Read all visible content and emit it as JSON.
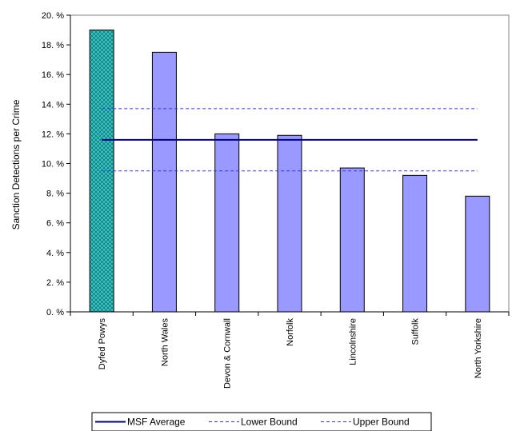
{
  "chart_data": {
    "type": "bar",
    "ylabel": "Sanction Detections per Crime",
    "ylim": [
      0,
      20
    ],
    "y_ticks": [
      {
        "value": 0,
        "label": "0. %"
      },
      {
        "value": 2,
        "label": "2. %"
      },
      {
        "value": 4,
        "label": "4. %"
      },
      {
        "value": 6,
        "label": "6. %"
      },
      {
        "value": 8,
        "label": "8. %"
      },
      {
        "value": 10,
        "label": "10. %"
      },
      {
        "value": 12,
        "label": "12. %"
      },
      {
        "value": 14,
        "label": "14. %"
      },
      {
        "value": 16,
        "label": "16. %"
      },
      {
        "value": 18,
        "label": "18. %"
      },
      {
        "value": 20,
        "label": "20. %"
      }
    ],
    "categories": [
      "Dyfed Powys",
      "North Wales",
      "Devon & Cornwall",
      "Norfolk",
      "Lincolnshire",
      "Suffolk",
      "North Yorkshire"
    ],
    "values": [
      19.0,
      17.5,
      12.0,
      11.9,
      9.7,
      9.2,
      7.8
    ],
    "highlight_category": "Dyfed Powys",
    "colors": {
      "bar": "#9999ff",
      "highlight": "#33cccc",
      "reference": "#000080",
      "bounds": "#3333ff"
    },
    "reference_lines": [
      {
        "name": "MSF Average",
        "value": 11.6,
        "style": "solid"
      },
      {
        "name": "Lower Bound",
        "value": 9.5,
        "style": "dashed"
      },
      {
        "name": "Upper Bound",
        "value": 13.7,
        "style": "dashed"
      }
    ],
    "legend": {
      "position": "bottom",
      "items": [
        "MSF Average",
        "Lower Bound",
        "Upper Bound"
      ]
    },
    "grid": false
  }
}
